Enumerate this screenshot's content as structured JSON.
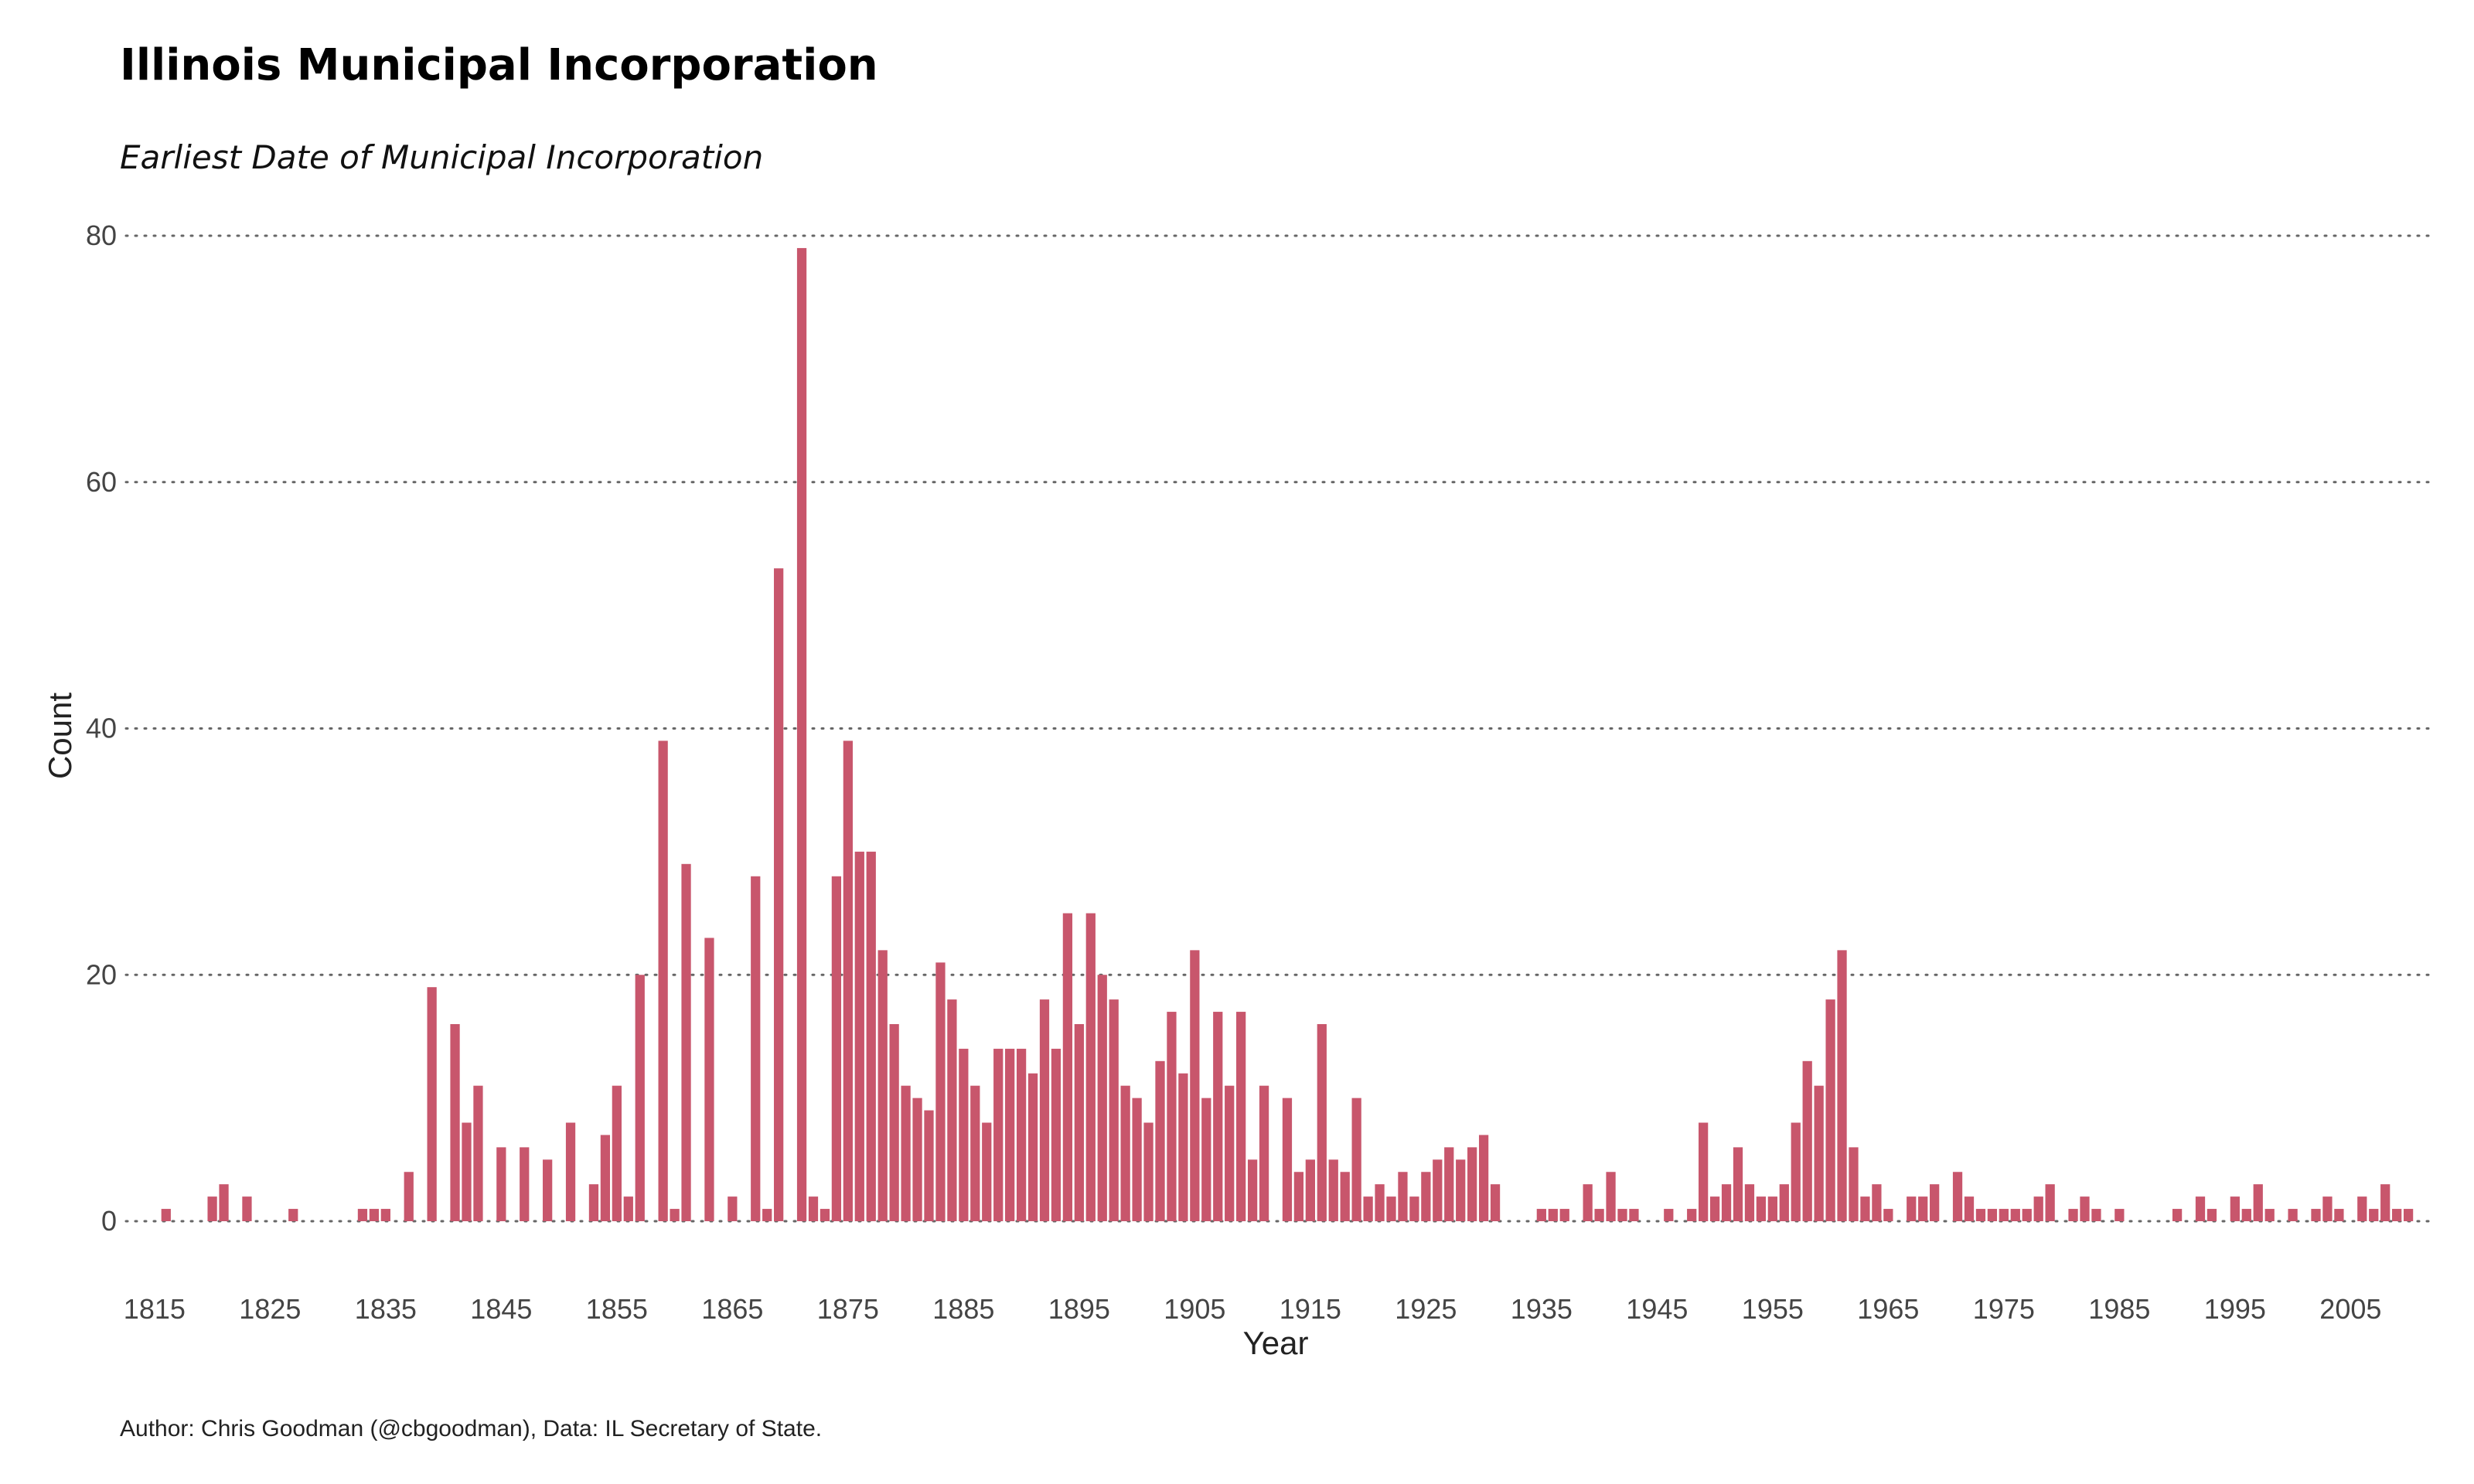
{
  "title": "Illinois Municipal Incorporation",
  "subtitle": "Earliest Date of Municipal Incorporation",
  "caption": "Author: Chris Goodman (@cbgoodman), Data: IL Secretary of State.",
  "chart_data": {
    "type": "bar",
    "xlabel": "Year",
    "ylabel": "Count",
    "xlim": [
      1812,
      2012
    ],
    "ylim": [
      0,
      80
    ],
    "x_ticks": [
      1815,
      1825,
      1835,
      1845,
      1855,
      1865,
      1875,
      1885,
      1895,
      1905,
      1915,
      1925,
      1935,
      1945,
      1955,
      1965,
      1975,
      1985,
      1995,
      2005
    ],
    "y_ticks": [
      0,
      20,
      40,
      60,
      80
    ],
    "grid": "horizontal dotted",
    "bar_color": "#c8566c",
    "x": [
      1816,
      1820,
      1821,
      1823,
      1827,
      1833,
      1834,
      1835,
      1837,
      1839,
      1841,
      1842,
      1843,
      1845,
      1847,
      1849,
      1851,
      1853,
      1854,
      1855,
      1856,
      1857,
      1859,
      1860,
      1861,
      1863,
      1865,
      1867,
      1868,
      1869,
      1871,
      1872,
      1873,
      1874,
      1875,
      1876,
      1877,
      1878,
      1879,
      1880,
      1881,
      1882,
      1883,
      1884,
      1885,
      1886,
      1887,
      1888,
      1889,
      1890,
      1891,
      1892,
      1893,
      1894,
      1895,
      1896,
      1897,
      1898,
      1899,
      1900,
      1901,
      1902,
      1903,
      1904,
      1905,
      1906,
      1907,
      1908,
      1909,
      1910,
      1911,
      1913,
      1914,
      1915,
      1916,
      1917,
      1918,
      1919,
      1920,
      1921,
      1922,
      1923,
      1924,
      1925,
      1926,
      1927,
      1928,
      1929,
      1930,
      1931,
      1935,
      1936,
      1937,
      1939,
      1940,
      1941,
      1942,
      1943,
      1946,
      1948,
      1949,
      1950,
      1951,
      1952,
      1953,
      1954,
      1955,
      1956,
      1957,
      1958,
      1959,
      1960,
      1961,
      1962,
      1963,
      1964,
      1965,
      1967,
      1968,
      1969,
      1971,
      1972,
      1973,
      1974,
      1975,
      1976,
      1977,
      1978,
      1979,
      1981,
      1982,
      1983,
      1985,
      1990,
      1992,
      1993,
      1995,
      1996,
      1997,
      1998,
      2000,
      2002,
      2003,
      2004,
      2006,
      2007,
      2008,
      2009,
      2010
    ],
    "values": [
      1,
      2,
      3,
      2,
      1,
      1,
      1,
      1,
      4,
      19,
      16,
      8,
      11,
      6,
      6,
      5,
      8,
      3,
      7,
      11,
      2,
      20,
      39,
      1,
      29,
      23,
      2,
      28,
      1,
      53,
      79,
      2,
      1,
      28,
      39,
      30,
      30,
      22,
      16,
      11,
      10,
      9,
      21,
      18,
      14,
      11,
      8,
      14,
      14,
      14,
      12,
      18,
      14,
      25,
      16,
      25,
      20,
      18,
      11,
      10,
      8,
      13,
      17,
      12,
      22,
      10,
      17,
      11,
      17,
      5,
      11,
      10,
      4,
      5,
      16,
      5,
      4,
      10,
      2,
      3,
      2,
      4,
      2,
      4,
      5,
      6,
      5,
      6,
      7,
      3,
      1,
      1,
      1,
      3,
      1,
      4,
      1,
      1,
      1,
      1,
      8,
      2,
      3,
      6,
      3,
      2,
      2,
      3,
      8,
      13,
      11,
      18,
      22,
      6,
      2,
      3,
      1,
      2,
      2,
      3,
      4,
      2,
      1,
      1,
      1,
      1,
      1,
      2,
      3,
      1,
      2,
      1,
      1,
      1,
      2,
      1,
      2,
      1,
      3,
      1,
      1,
      1,
      2,
      1,
      2,
      1,
      3,
      1,
      1
    ]
  }
}
